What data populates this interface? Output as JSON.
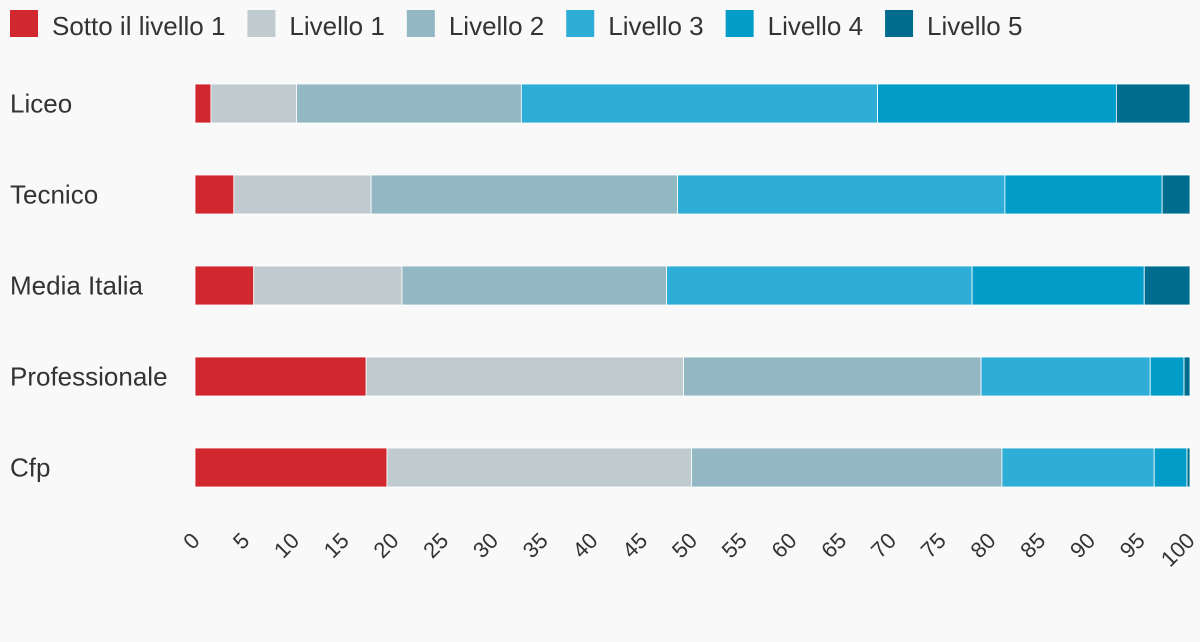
{
  "chart_data": {
    "type": "bar",
    "orientation": "horizontal",
    "stacked": true,
    "categories": [
      "Liceo",
      "Tecnico",
      "Media Italia",
      "Professionale",
      "Cfp"
    ],
    "series": [
      {
        "name": "Sotto il livello 1",
        "color": "#d0282e",
        "values": [
          1.6,
          3.9,
          5.9,
          17.2,
          19.3
        ]
      },
      {
        "name": "Livello 1",
        "color": "#c0cbd0",
        "values": [
          8.6,
          13.8,
          14.9,
          31.9,
          30.6
        ]
      },
      {
        "name": "Livello 2",
        "color": "#93b8c3",
        "values": [
          22.6,
          30.8,
          26.6,
          29.9,
          31.2
        ]
      },
      {
        "name": "Livello 3",
        "color": "#2eadd6",
        "values": [
          35.8,
          32.9,
          30.7,
          17.0,
          15.3
        ]
      },
      {
        "name": "Livello 4",
        "color": "#019dc8",
        "values": [
          24.0,
          15.8,
          17.3,
          3.4,
          3.3
        ]
      },
      {
        "name": "Livello 5",
        "color": "#006d8f",
        "values": [
          7.4,
          2.8,
          4.6,
          0.6,
          0.3
        ]
      }
    ],
    "xticks": [
      "0",
      "5",
      "10",
      "15",
      "20",
      "25",
      "30",
      "35",
      "40",
      "45",
      "50",
      "55",
      "60",
      "65",
      "70",
      "75",
      "80",
      "85",
      "90",
      "95",
      "100"
    ],
    "xlim": [
      0,
      100
    ],
    "legend_position": "top",
    "grid": false
  }
}
